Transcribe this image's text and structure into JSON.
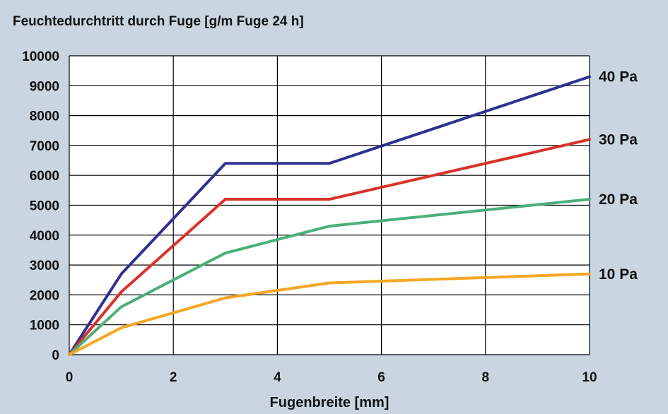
{
  "chart_data": {
    "type": "line",
    "title": "Feuchtedurchtritt durch Fuge [g/m Fuge 24 h]",
    "xlabel": "Fugenbreite [mm]",
    "ylabel": "",
    "xlim": [
      0,
      10
    ],
    "ylim": [
      0,
      10000
    ],
    "xticks": [
      0,
      2,
      4,
      6,
      8,
      10
    ],
    "yticks": [
      0,
      1000,
      2000,
      3000,
      4000,
      5000,
      6000,
      7000,
      8000,
      9000,
      10000
    ],
    "grid": true,
    "legend": "right-inline-labels",
    "series": [
      {
        "name": "40 Pa",
        "color": "#2e3192",
        "x": [
          0,
          1,
          3,
          5,
          10
        ],
        "y": [
          0,
          2700,
          6400,
          6400,
          9300
        ]
      },
      {
        "name": "30 Pa",
        "color": "#d7332b",
        "x": [
          0,
          1,
          3,
          5,
          10
        ],
        "y": [
          0,
          2100,
          5200,
          5200,
          7200
        ]
      },
      {
        "name": "20 Pa",
        "color": "#4caf7a",
        "x": [
          0,
          1,
          3,
          5,
          10
        ],
        "y": [
          0,
          1600,
          3400,
          4300,
          5200
        ]
      },
      {
        "name": "10 Pa",
        "color": "#f5a623",
        "x": [
          0,
          1,
          3,
          5,
          10
        ],
        "y": [
          0,
          900,
          1900,
          2400,
          2700
        ]
      }
    ]
  }
}
